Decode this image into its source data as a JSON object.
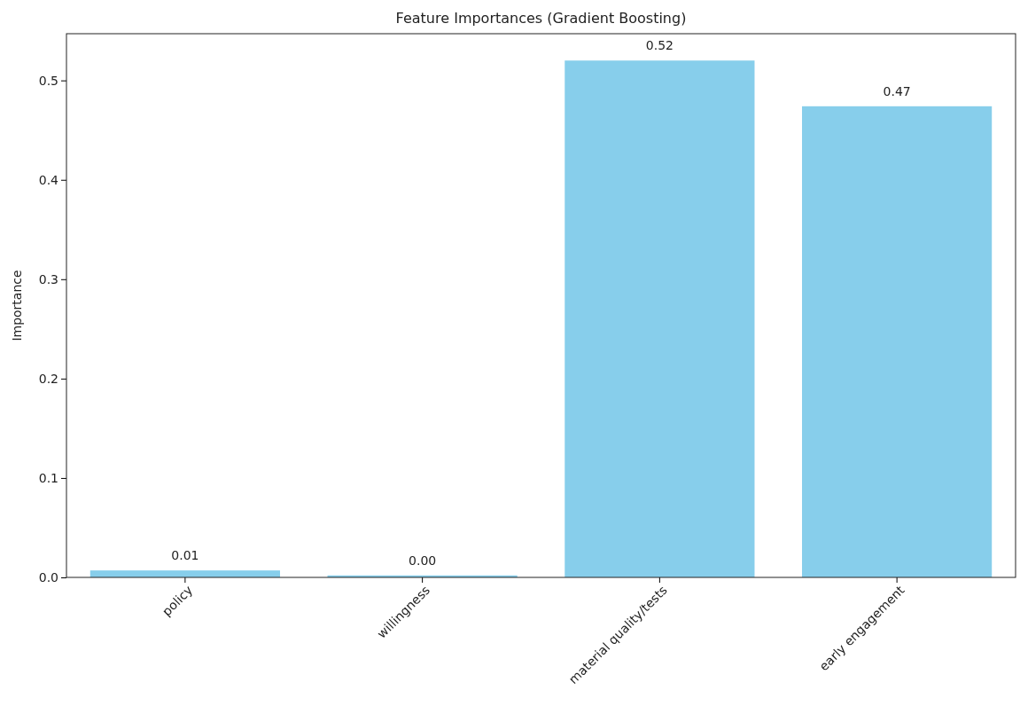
{
  "chart_data": {
    "type": "bar",
    "title": "Feature Importances (Gradient Boosting)",
    "ylabel": "Importance",
    "categories": [
      "policy",
      "willingness",
      "material quality/tests",
      "early engagement"
    ],
    "values": [
      0.007,
      0.002,
      0.52,
      0.474
    ],
    "value_labels": [
      "0.01",
      "0.00",
      "0.52",
      "0.47"
    ],
    "color": "#87ceeb",
    "ylim": [
      0,
      0.547
    ],
    "yticks": [
      {
        "value": 0,
        "label": "0.0"
      },
      {
        "value": 0.1,
        "label": "0.1"
      },
      {
        "value": 0.2,
        "label": "0.2"
      },
      {
        "value": 0.3,
        "label": "0.3"
      },
      {
        "value": 0.4,
        "label": "0.4"
      },
      {
        "value": 0.5,
        "label": "0.5"
      }
    ],
    "grid": false
  }
}
